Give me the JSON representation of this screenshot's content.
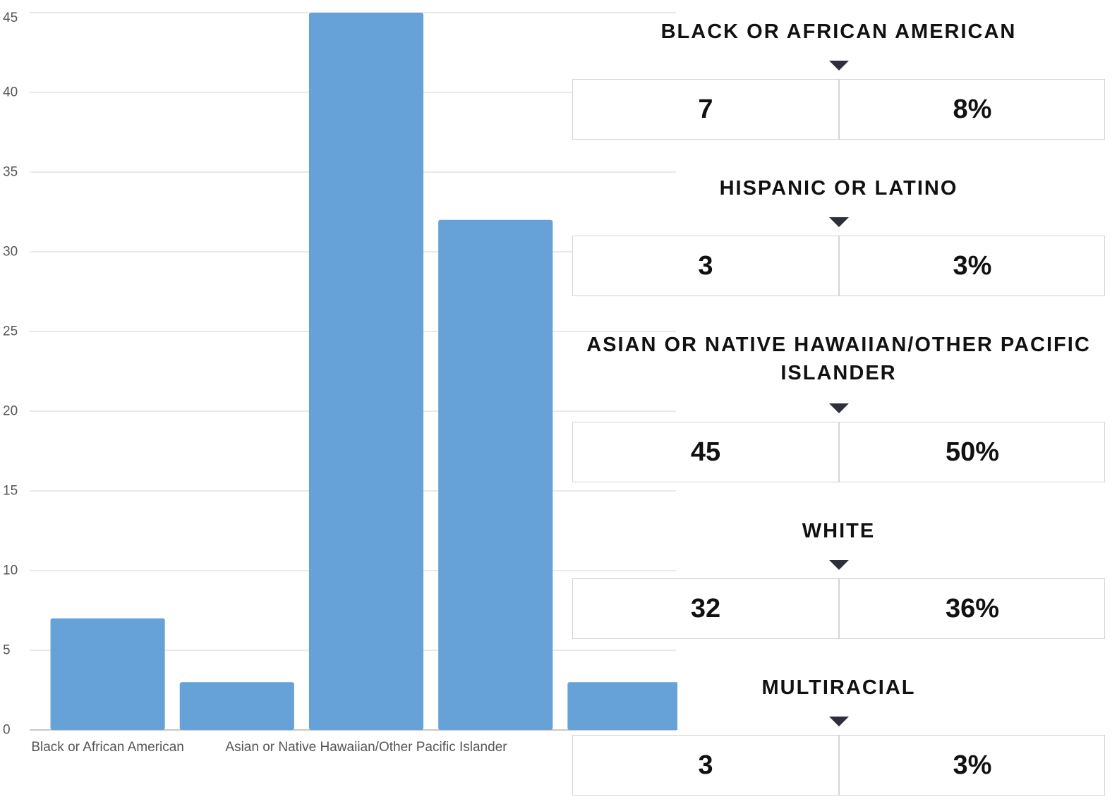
{
  "chart_data": {
    "type": "bar",
    "categories": [
      "Black or African American",
      "Hispanic or Latino",
      "Asian or Native Hawaiian/Other Pacific Islander",
      "White",
      "Multiracial"
    ],
    "category_labels_shown": [
      "Black or African American",
      "",
      "Asian or Native Hawaiian/Other Pacific Islander",
      "",
      "Multiracial"
    ],
    "values": [
      7,
      3,
      45,
      32,
      3
    ],
    "ylim": [
      0,
      45
    ],
    "yticks": [
      0,
      5,
      10,
      15,
      20,
      25,
      30,
      35,
      40,
      45
    ],
    "grid": true,
    "bar_color": "#66a2d7"
  },
  "stats": [
    {
      "title": "BLACK OR AFRICAN AMERICAN",
      "count": "7",
      "percent": "8%"
    },
    {
      "title": "HISPANIC OR LATINO",
      "count": "3",
      "percent": "3%"
    },
    {
      "title": "ASIAN OR NATIVE HAWAIIAN/OTHER PACIFIC ISLANDER",
      "count": "45",
      "percent": "50%"
    },
    {
      "title": "WHITE",
      "count": "32",
      "percent": "36%"
    },
    {
      "title": "MULTIRACIAL",
      "count": "3",
      "percent": "3%"
    }
  ]
}
